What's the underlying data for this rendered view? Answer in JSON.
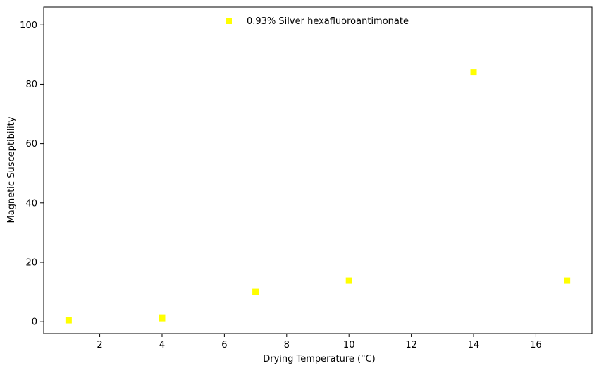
{
  "chart_data": {
    "type": "scatter",
    "title": "",
    "xlabel": "Drying Temperature (°C)",
    "ylabel": "Magnetic Susceptibility",
    "xlim": [
      0.2,
      17.8
    ],
    "ylim": [
      -4,
      106
    ],
    "xticks": [
      2,
      4,
      6,
      8,
      10,
      12,
      14,
      16
    ],
    "yticks": [
      0,
      20,
      40,
      60,
      80,
      100
    ],
    "grid": false,
    "legend_position": "top-center",
    "series": [
      {
        "name": "0.93% Silver hexafluoroantimonate",
        "color": "#ffff00",
        "marker": "square",
        "x": [
          1,
          4,
          7,
          10,
          14,
          17
        ],
        "y": [
          0.5,
          1.2,
          10.0,
          13.8,
          84.0,
          13.8
        ]
      }
    ]
  }
}
